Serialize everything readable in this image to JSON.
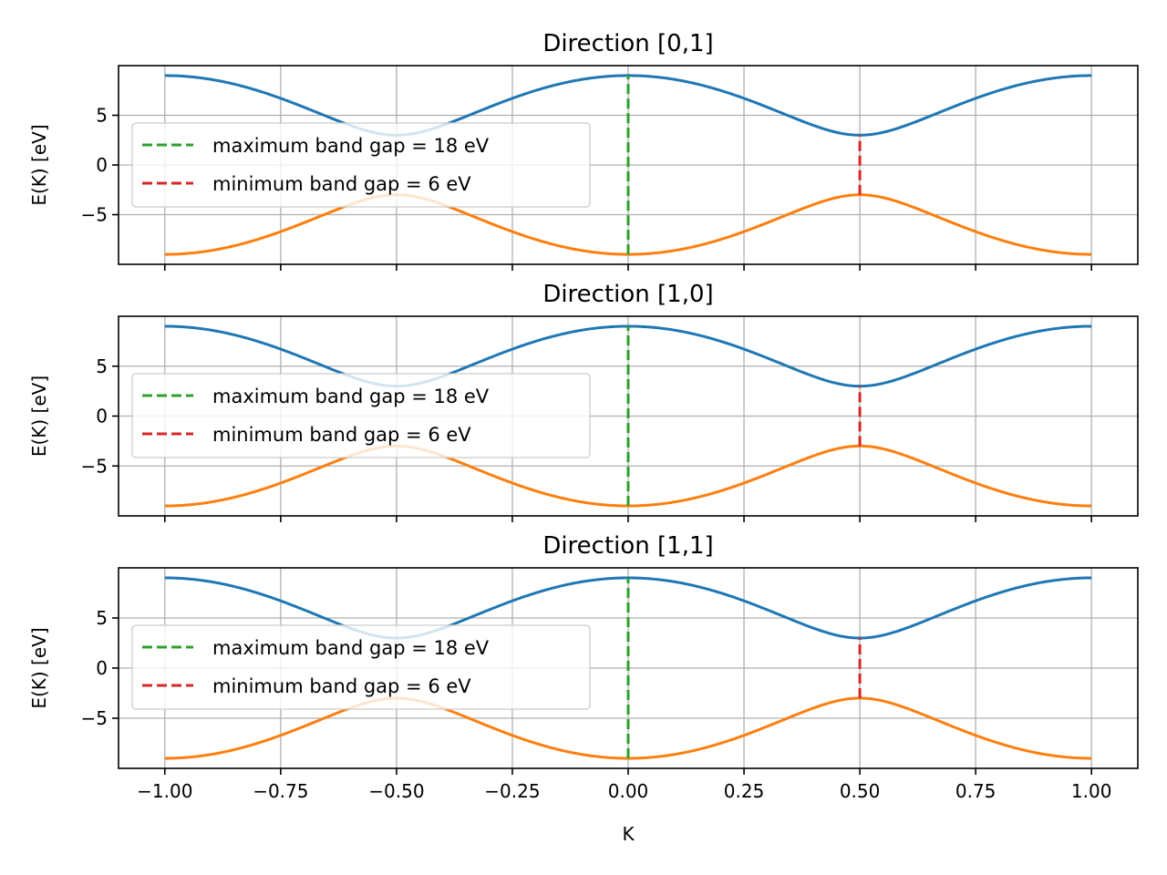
{
  "chart_data": [
    {
      "type": "line",
      "title": "Direction [0,1]",
      "xlabel": "",
      "ylabel": "E(K) [eV]",
      "xlim": [
        -1.1,
        1.1
      ],
      "ylim": [
        -10,
        10
      ],
      "xticks": [
        -1.0,
        -0.75,
        -0.5,
        -0.25,
        0.0,
        0.25,
        0.5,
        0.75,
        1.0
      ],
      "xtick_labels": [],
      "yticks": [
        -5,
        0,
        5
      ],
      "ytick_labels": [
        "−5",
        "0",
        "5"
      ],
      "grid": true,
      "legend_position": "center-left",
      "bands": {
        "k_range": [
          -1,
          1
        ],
        "upper": {
          "max": 9,
          "min_at_k_-0.5": 3,
          "min_at_k_0.5": 3,
          "color": "#1f77b4"
        },
        "lower": {
          "min": -9,
          "max_at_k_-0.5": -3,
          "max_at_k_0.5": -3,
          "color": "#ff7f0e"
        }
      },
      "gap_lines": [
        {
          "name": "maximum band gap = 18 eV",
          "k": 0.0,
          "y_from": -9,
          "y_to": 9,
          "color": "#2ca02c"
        },
        {
          "name": "minimum band gap = 6 eV",
          "k": 0.5,
          "y_from": -3,
          "y_to": 3,
          "color": "#d62728"
        }
      ]
    },
    {
      "type": "line",
      "title": "Direction [1,0]",
      "xlabel": "",
      "ylabel": "E(K) [eV]",
      "xlim": [
        -1.1,
        1.1
      ],
      "ylim": [
        -10,
        10
      ],
      "xticks": [
        -1.0,
        -0.75,
        -0.5,
        -0.25,
        0.0,
        0.25,
        0.5,
        0.75,
        1.0
      ],
      "xtick_labels": [],
      "yticks": [
        -5,
        0,
        5
      ],
      "ytick_labels": [
        "−5",
        "0",
        "5"
      ],
      "grid": true,
      "legend_position": "center-left",
      "bands": {
        "k_range": [
          -1,
          1
        ],
        "upper": {
          "max": 9,
          "min_at_k_-0.5": 3,
          "min_at_k_0.5": 3,
          "color": "#1f77b4"
        },
        "lower": {
          "min": -9,
          "max_at_k_-0.5": -3,
          "max_at_k_0.5": -3,
          "color": "#ff7f0e"
        }
      },
      "gap_lines": [
        {
          "name": "maximum band gap = 18 eV",
          "k": 0.0,
          "y_from": -9,
          "y_to": 9,
          "color": "#2ca02c"
        },
        {
          "name": "minimum band gap = 6 eV",
          "k": 0.5,
          "y_from": -3,
          "y_to": 3,
          "color": "#d62728"
        }
      ]
    },
    {
      "type": "line",
      "title": "Direction [1,1]",
      "xlabel": "K",
      "ylabel": "E(K) [eV]",
      "xlim": [
        -1.1,
        1.1
      ],
      "ylim": [
        -10,
        10
      ],
      "xticks": [
        -1.0,
        -0.75,
        -0.5,
        -0.25,
        0.0,
        0.25,
        0.5,
        0.75,
        1.0
      ],
      "xtick_labels": [
        "−1.00",
        "−0.75",
        "−0.50",
        "−0.25",
        "0.00",
        "0.25",
        "0.50",
        "0.75",
        "1.00"
      ],
      "yticks": [
        -5,
        0,
        5
      ],
      "ytick_labels": [
        "−5",
        "0",
        "5"
      ],
      "grid": true,
      "legend_position": "center-left",
      "bands": {
        "k_range": [
          -1,
          1
        ],
        "upper": {
          "max": 9,
          "min_at_k_-0.5": 3,
          "min_at_k_0.5": 3,
          "color": "#1f77b4"
        },
        "lower": {
          "min": -9,
          "max_at_k_-0.5": -3,
          "max_at_k_0.5": -3,
          "color": "#ff7f0e"
        }
      },
      "gap_lines": [
        {
          "name": "maximum band gap = 18 eV",
          "k": 0.0,
          "y_from": -9,
          "y_to": 9,
          "color": "#2ca02c"
        },
        {
          "name": "minimum band gap = 6 eV",
          "k": 0.5,
          "y_from": -3,
          "y_to": 3,
          "color": "#d62728"
        }
      ]
    }
  ]
}
